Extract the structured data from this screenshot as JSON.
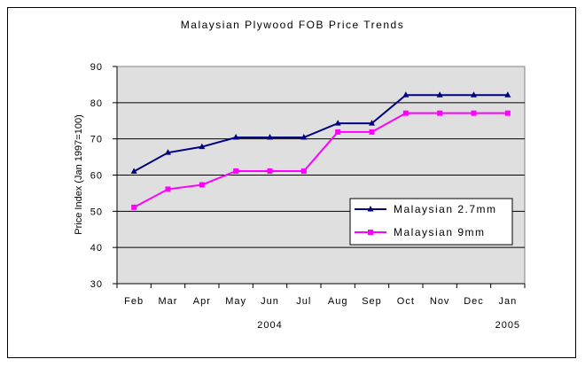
{
  "chart_data": {
    "type": "line",
    "title": "Malaysian Plywood FOB Price Trends",
    "ylabel": "Price Index (Jan 1997=100)",
    "xlabel": "",
    "ylim": [
      30,
      90
    ],
    "yticks": [
      30,
      40,
      50,
      60,
      70,
      80,
      90
    ],
    "categories": [
      "Feb",
      "Mar",
      "Apr",
      "May",
      "Jun",
      "Jul",
      "Aug",
      "Sep",
      "Oct",
      "Nov",
      "Dec",
      "Jan"
    ],
    "year_labels": [
      {
        "text": "2004",
        "category": "Jun"
      },
      {
        "text": "2005",
        "category": "Jan"
      }
    ],
    "grid": true,
    "legend": "right",
    "plot_background": "#dfdfdf",
    "series": [
      {
        "name": "Malaysian 2.7mm",
        "color": "#000080",
        "marker": "triangle",
        "values": [
          61,
          66.2,
          67.8,
          70.4,
          70.4,
          70.4,
          74.3,
          74.3,
          82.1,
          82.1,
          82.1,
          82.1
        ]
      },
      {
        "name": "Malaysian 9mm",
        "color": "#ff00ff",
        "marker": "square",
        "values": [
          51.1,
          56.1,
          57.3,
          61.1,
          61.1,
          61.1,
          71.9,
          71.9,
          77.1,
          77.1,
          77.1,
          77.1
        ]
      }
    ]
  }
}
